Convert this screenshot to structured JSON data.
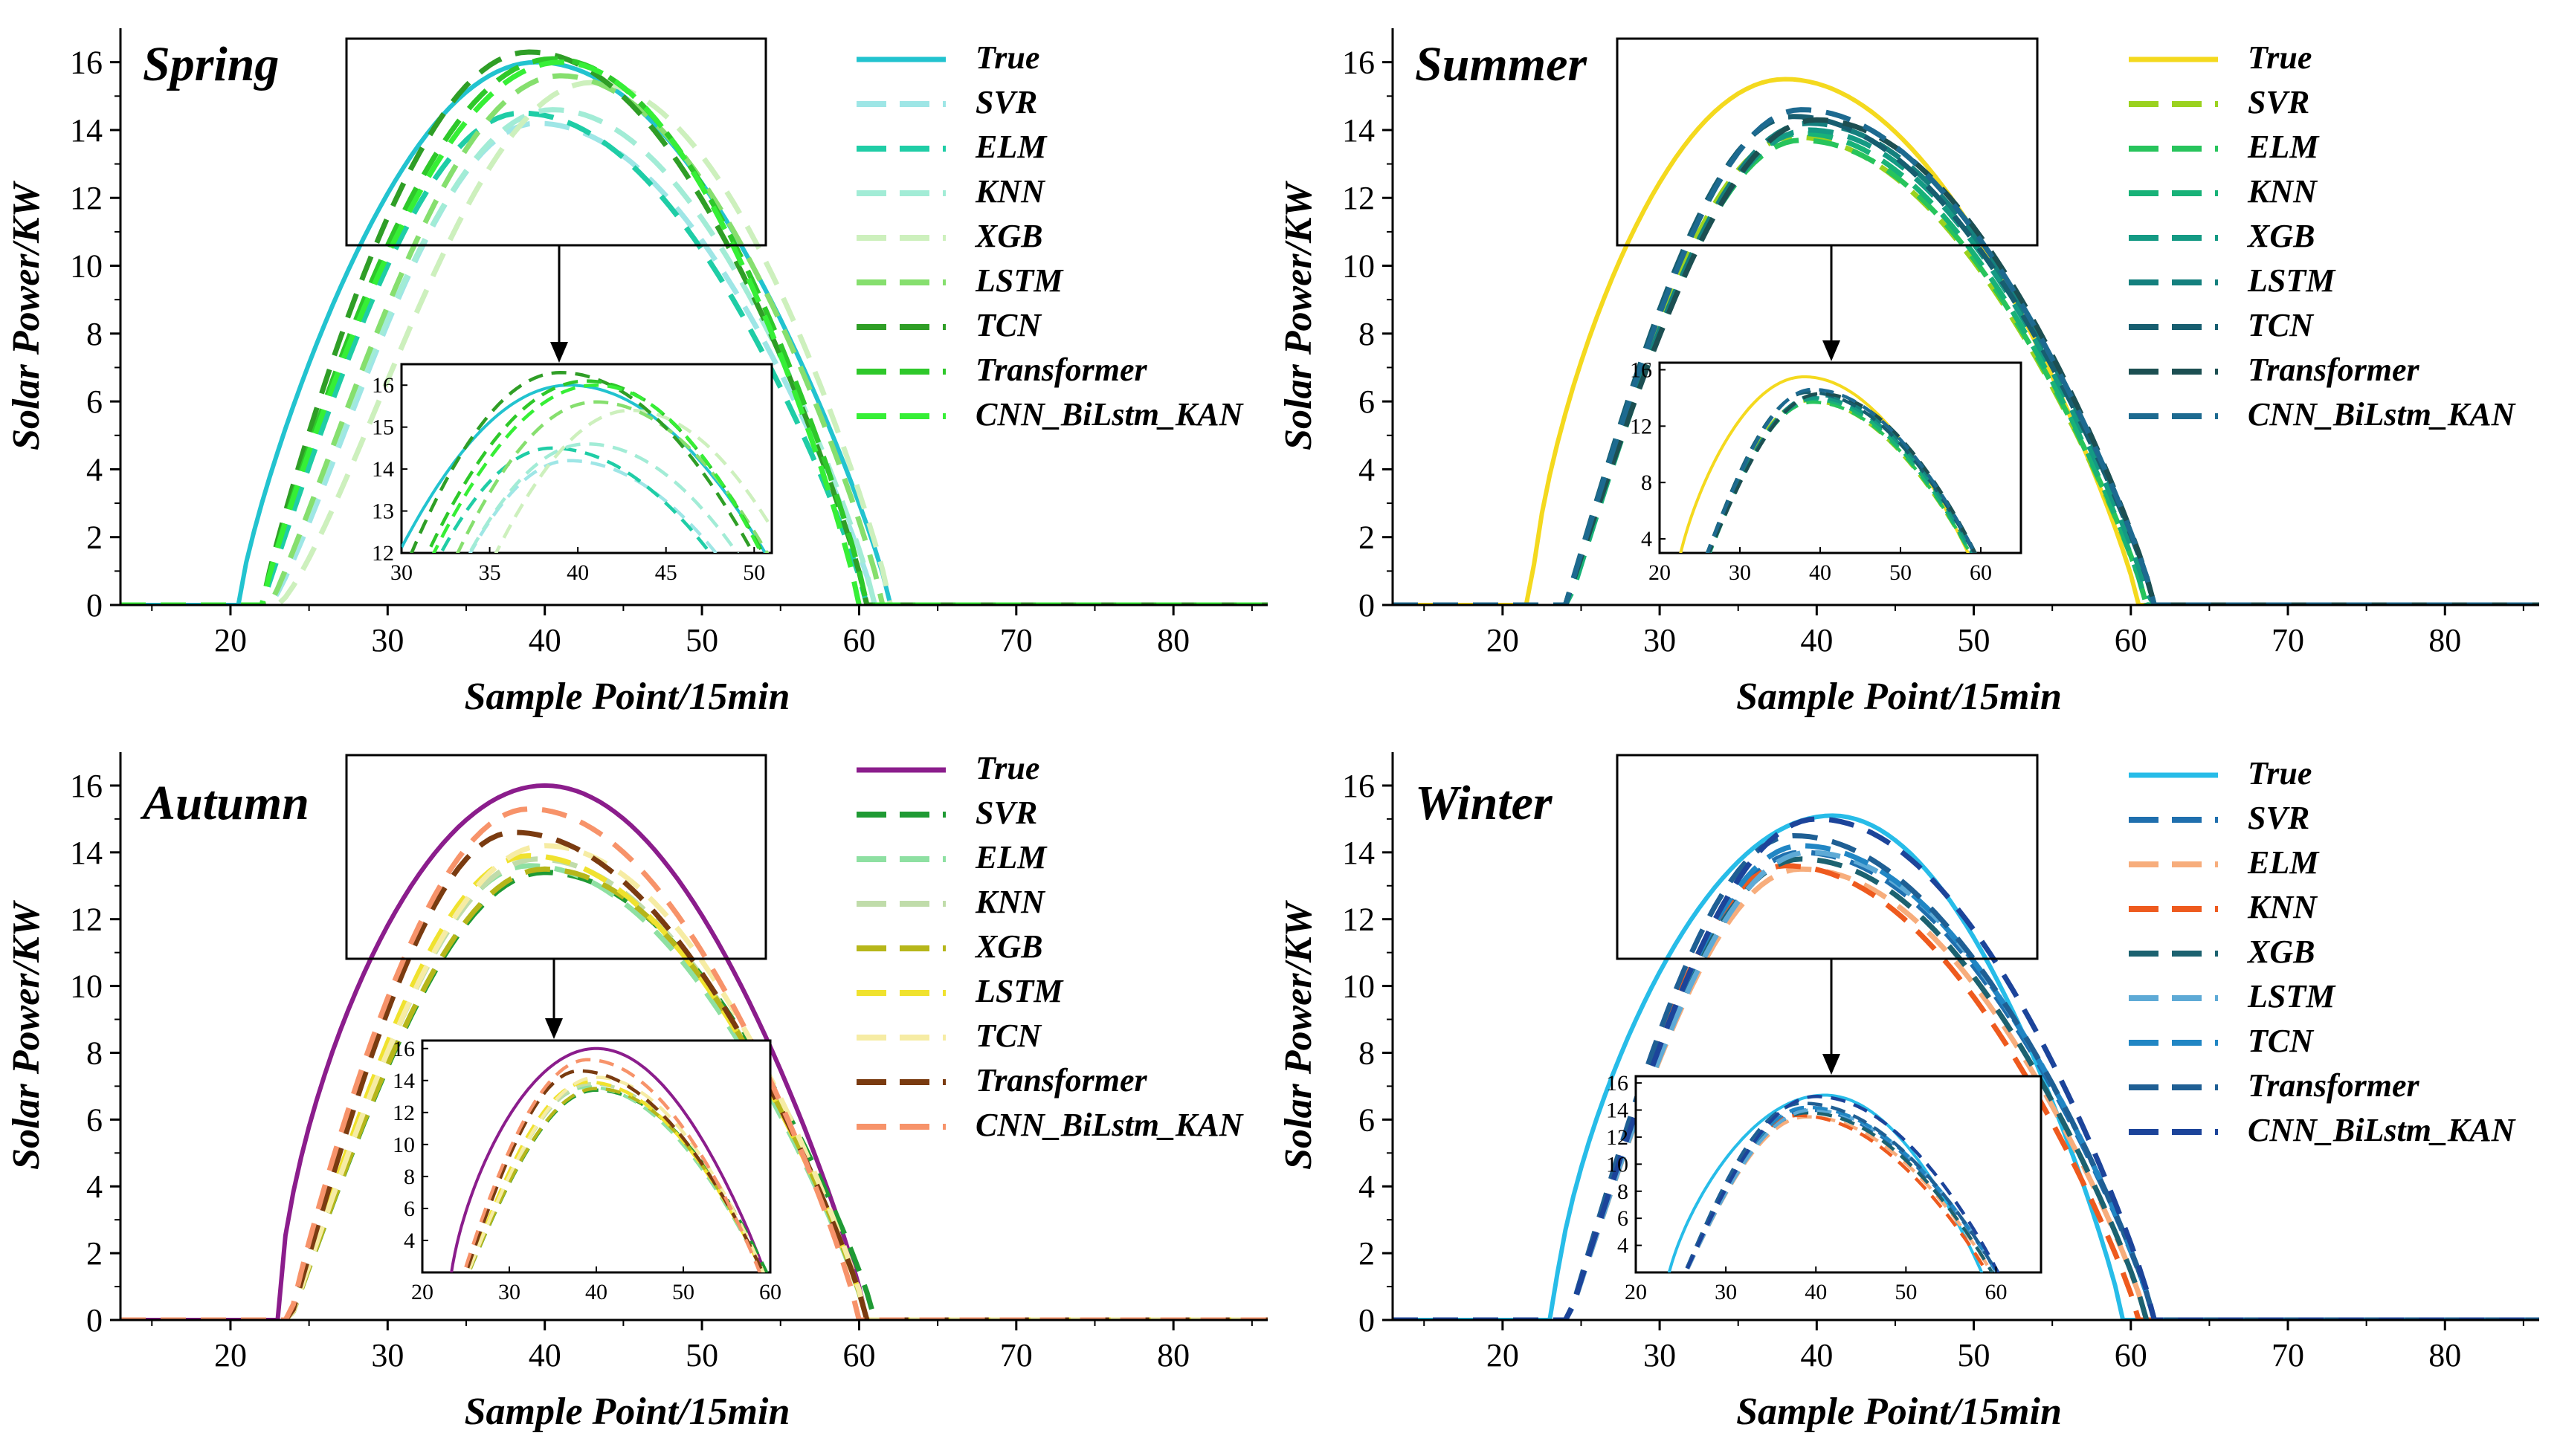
{
  "chart_data": [
    {
      "type": "line",
      "title": "Spring",
      "xlabel": "Sample Point/15min",
      "ylabel": "Solar Power/KW",
      "xlim": [
        13,
        86
      ],
      "ylim": [
        0,
        17
      ],
      "xticks": [
        "20",
        "30",
        "40",
        "50",
        "60",
        "70",
        "80"
      ],
      "yticks": [
        "0",
        "2",
        "4",
        "6",
        "8",
        "10",
        "12",
        "14",
        "16"
      ],
      "legend": "right",
      "series": [
        {
          "name": "True",
          "color": "#22c3cf",
          "dashed": false,
          "start": 20.5,
          "end": 62.0,
          "peak": 16.0,
          "peak_x": 39.5,
          "rise": 0.8
        },
        {
          "name": "SVR",
          "color": "#9ee6e6",
          "dashed": true,
          "start": 22.5,
          "end": 61.0,
          "peak": 14.2,
          "peak_x": 39.5,
          "rise": 1.2
        },
        {
          "name": "ELM",
          "color": "#1fcda6",
          "dashed": true,
          "start": 22.0,
          "end": 60.5,
          "peak": 14.5,
          "peak_x": 38.5,
          "rise": 1.0
        },
        {
          "name": "KNN",
          "color": "#a2ecd6",
          "dashed": true,
          "start": 22.5,
          "end": 61.0,
          "peak": 14.6,
          "peak_x": 40.5,
          "rise": 1.1
        },
        {
          "name": "XGB",
          "color": "#cdf0bd",
          "dashed": true,
          "start": 23.0,
          "end": 62.0,
          "peak": 15.4,
          "peak_x": 43.0,
          "rise": 1.3
        },
        {
          "name": "LSTM",
          "color": "#86df6e",
          "dashed": true,
          "start": 22.5,
          "end": 61.5,
          "peak": 15.6,
          "peak_x": 41.0,
          "rise": 1.1
        },
        {
          "name": "TCN",
          "color": "#2f9e26",
          "dashed": true,
          "start": 22.0,
          "end": 60.5,
          "peak": 16.3,
          "peak_x": 39.0,
          "rise": 0.9
        },
        {
          "name": "Transformer",
          "color": "#2ec82a",
          "dashed": true,
          "start": 22.0,
          "end": 60.5,
          "peak": 16.1,
          "peak_x": 40.5,
          "rise": 0.9
        },
        {
          "name": "CNN_BiLstm_KAN",
          "color": "#36ef36",
          "dashed": true,
          "start": 22.0,
          "end": 60.0,
          "peak": 16.0,
          "peak_x": 41.0,
          "rise": 0.9
        }
      ],
      "inset": {
        "xlim": [
          30,
          51
        ],
        "ylim": [
          12,
          16.5
        ],
        "xticks": [
          "30",
          "35",
          "40",
          "45",
          "50"
        ],
        "yticks": [
          "12",
          "13",
          "14",
          "15",
          "16"
        ]
      }
    },
    {
      "type": "line",
      "title": "Summer",
      "xlabel": "Sample Point/15min",
      "ylabel": "Solar Power/KW",
      "xlim": [
        13,
        86
      ],
      "ylim": [
        0,
        17
      ],
      "xticks": [
        "20",
        "30",
        "40",
        "50",
        "60",
        "70",
        "80"
      ],
      "yticks": [
        "0",
        "2",
        "4",
        "6",
        "8",
        "10",
        "12",
        "14",
        "16"
      ],
      "legend": "right",
      "series": [
        {
          "name": "True",
          "color": "#f4d91e",
          "dashed": false,
          "start": 21.8,
          "end": 60.5,
          "peak": 15.5,
          "peak_x": 38.0,
          "rise": 0.65
        },
        {
          "name": "SVR",
          "color": "#9bd21f",
          "dashed": true,
          "start": 24.0,
          "end": 61.0,
          "peak": 13.8,
          "peak_x": 38.5,
          "rise": 1.0
        },
        {
          "name": "ELM",
          "color": "#27c45c",
          "dashed": true,
          "start": 24.0,
          "end": 61.0,
          "peak": 13.7,
          "peak_x": 39.0,
          "rise": 1.0
        },
        {
          "name": "KNN",
          "color": "#18b278",
          "dashed": true,
          "start": 24.2,
          "end": 61.0,
          "peak": 13.9,
          "peak_x": 39.0,
          "rise": 1.0
        },
        {
          "name": "XGB",
          "color": "#149a84",
          "dashed": true,
          "start": 24.0,
          "end": 61.2,
          "peak": 14.0,
          "peak_x": 39.5,
          "rise": 1.0
        },
        {
          "name": "LSTM",
          "color": "#14807e",
          "dashed": true,
          "start": 24.0,
          "end": 61.5,
          "peak": 14.2,
          "peak_x": 39.5,
          "rise": 1.0
        },
        {
          "name": "TCN",
          "color": "#175e70",
          "dashed": true,
          "start": 24.0,
          "end": 61.5,
          "peak": 14.4,
          "peak_x": 38.5,
          "rise": 1.0
        },
        {
          "name": "Transformer",
          "color": "#1c4f52",
          "dashed": true,
          "start": 24.0,
          "end": 61.5,
          "peak": 14.3,
          "peak_x": 40.0,
          "rise": 1.0
        },
        {
          "name": "CNN_BiLstm_KAN",
          "color": "#1d6a90",
          "dashed": true,
          "start": 24.0,
          "end": 61.5,
          "peak": 14.6,
          "peak_x": 39.0,
          "rise": 1.0
        }
      ],
      "inset": {
        "xlim": [
          20,
          65
        ],
        "ylim": [
          3,
          16.5
        ],
        "xticks": [
          "20",
          "30",
          "40",
          "50",
          "60"
        ],
        "yticks": [
          "4",
          "8",
          "12",
          "16"
        ]
      }
    },
    {
      "type": "line",
      "title": "Autumn",
      "xlabel": "Sample Point/15min",
      "ylabel": "Solar Power/KW",
      "xlim": [
        13,
        86
      ],
      "ylim": [
        0,
        17
      ],
      "xticks": [
        "20",
        "30",
        "40",
        "50",
        "60",
        "70",
        "80"
      ],
      "yticks": [
        "0",
        "2",
        "4",
        "6",
        "8",
        "10",
        "12",
        "14",
        "16"
      ],
      "legend": "right",
      "series": [
        {
          "name": "True",
          "color": "#8b1d8c",
          "dashed": false,
          "start": 23.0,
          "end": 60.5,
          "peak": 16.0,
          "peak_x": 40.0,
          "rise": 0.6
        },
        {
          "name": "SVR",
          "color": "#1f9a34",
          "dashed": true,
          "start": 23.8,
          "end": 61.0,
          "peak": 13.4,
          "peak_x": 40.0,
          "rise": 1.0
        },
        {
          "name": "ELM",
          "color": "#8ee0a2",
          "dashed": true,
          "start": 23.8,
          "end": 60.5,
          "peak": 13.6,
          "peak_x": 39.0,
          "rise": 1.0
        },
        {
          "name": "KNN",
          "color": "#c0dcaa",
          "dashed": true,
          "start": 23.8,
          "end": 60.5,
          "peak": 13.8,
          "peak_x": 39.5,
          "rise": 1.0
        },
        {
          "name": "XGB",
          "color": "#b6b61a",
          "dashed": true,
          "start": 23.8,
          "end": 60.5,
          "peak": 13.5,
          "peak_x": 40.0,
          "rise": 1.0
        },
        {
          "name": "LSTM",
          "color": "#f0e22e",
          "dashed": true,
          "start": 23.8,
          "end": 60.5,
          "peak": 13.9,
          "peak_x": 39.0,
          "rise": 1.0
        },
        {
          "name": "TCN",
          "color": "#f6eca4",
          "dashed": true,
          "start": 23.8,
          "end": 60.5,
          "peak": 14.2,
          "peak_x": 40.0,
          "rise": 1.0
        },
        {
          "name": "Transformer",
          "color": "#7a3b10",
          "dashed": true,
          "start": 23.8,
          "end": 60.5,
          "peak": 14.6,
          "peak_x": 38.0,
          "rise": 1.0
        },
        {
          "name": "CNN_BiLstm_KAN",
          "color": "#f7936a",
          "dashed": true,
          "start": 23.8,
          "end": 60.0,
          "peak": 15.3,
          "peak_x": 39.0,
          "rise": 0.9
        }
      ],
      "inset": {
        "xlim": [
          20,
          60
        ],
        "ylim": [
          2,
          16.5
        ],
        "xticks": [
          "20",
          "30",
          "40",
          "50",
          "60"
        ],
        "yticks": [
          "4",
          "6",
          "8",
          "10",
          "12",
          "14",
          "16"
        ]
      }
    },
    {
      "type": "line",
      "title": "Winter",
      "xlabel": "Sample Point/15min",
      "ylabel": "Solar Power/KW",
      "xlim": [
        13,
        86
      ],
      "ylim": [
        0,
        17
      ],
      "xticks": [
        "20",
        "30",
        "40",
        "50",
        "60",
        "70",
        "80"
      ],
      "yticks": [
        "0",
        "2",
        "4",
        "6",
        "8",
        "10",
        "12",
        "14",
        "16"
      ],
      "legend": "right",
      "series": [
        {
          "name": "True",
          "color": "#27bce8",
          "dashed": false,
          "start": 23.2,
          "end": 59.5,
          "peak": 15.1,
          "peak_x": 41.0,
          "rise": 0.65
        },
        {
          "name": "SVR",
          "color": "#1f6fae",
          "dashed": true,
          "start": 24.2,
          "end": 61.5,
          "peak": 14.0,
          "peak_x": 39.0,
          "rise": 1.0
        },
        {
          "name": "ELM",
          "color": "#f7ad7c",
          "dashed": true,
          "start": 24.2,
          "end": 61.0,
          "peak": 13.5,
          "peak_x": 39.0,
          "rise": 1.0
        },
        {
          "name": "KNN",
          "color": "#ee5a1e",
          "dashed": true,
          "start": 24.2,
          "end": 60.5,
          "peak": 13.6,
          "peak_x": 38.0,
          "rise": 1.0
        },
        {
          "name": "XGB",
          "color": "#1c6270",
          "dashed": true,
          "start": 24.2,
          "end": 61.0,
          "peak": 13.8,
          "peak_x": 39.0,
          "rise": 1.0
        },
        {
          "name": "LSTM",
          "color": "#5eaad6",
          "dashed": true,
          "start": 24.2,
          "end": 61.5,
          "peak": 14.0,
          "peak_x": 39.5,
          "rise": 1.0
        },
        {
          "name": "TCN",
          "color": "#2186c4",
          "dashed": true,
          "start": 24.2,
          "end": 61.5,
          "peak": 14.2,
          "peak_x": 39.0,
          "rise": 1.0
        },
        {
          "name": "Transformer",
          "color": "#1f5f94",
          "dashed": true,
          "start": 24.2,
          "end": 61.5,
          "peak": 14.5,
          "peak_x": 38.5,
          "rise": 1.0
        },
        {
          "name": "CNN_BiLstm_KAN",
          "color": "#1c449a",
          "dashed": true,
          "start": 24.2,
          "end": 61.5,
          "peak": 15.0,
          "peak_x": 40.0,
          "rise": 1.0
        }
      ],
      "inset": {
        "xlim": [
          20,
          65
        ],
        "ylim": [
          2,
          16.5
        ],
        "xticks": [
          "20",
          "30",
          "40",
          "50",
          "60"
        ],
        "yticks": [
          "4",
          "6",
          "8",
          "10",
          "12",
          "14",
          "16"
        ]
      }
    }
  ]
}
